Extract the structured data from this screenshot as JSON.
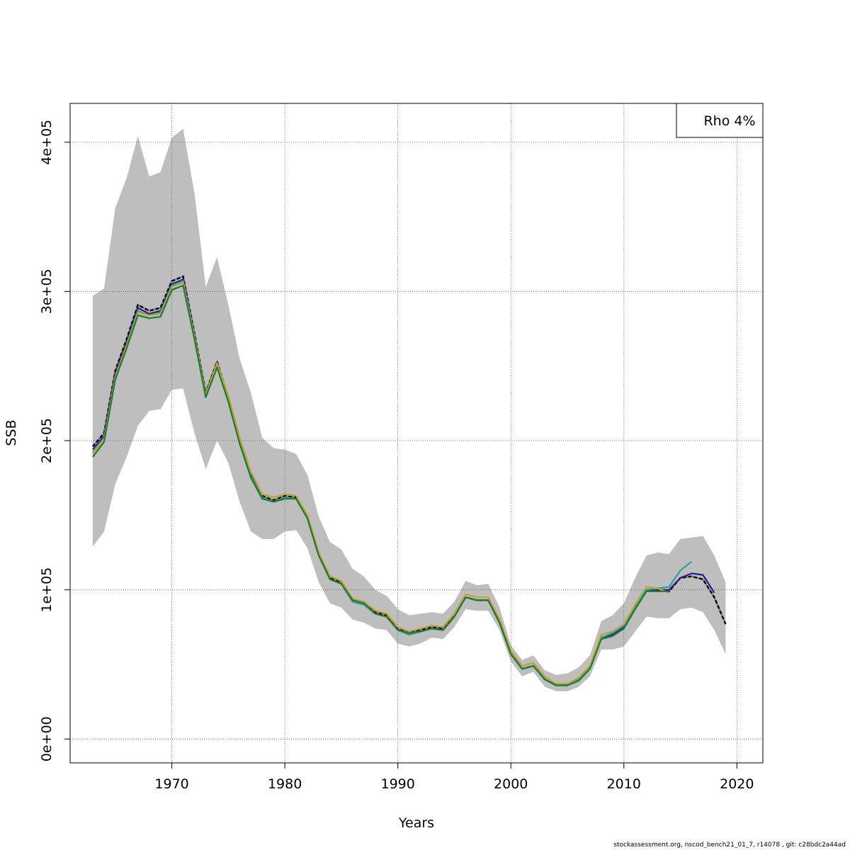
{
  "chart_data": {
    "type": "line",
    "xlabel": "Years",
    "ylabel": "SSB",
    "xlim": [
      1961,
      2022.3
    ],
    "ylim": [
      -16000,
      426000
    ],
    "x_ticks": [
      1970,
      1980,
      1990,
      2000,
      2010,
      2020
    ],
    "x_tick_labels": [
      "1970",
      "1980",
      "1990",
      "2000",
      "2010",
      "2020"
    ],
    "y_ticks": [
      0,
      100000,
      200000,
      300000,
      400000
    ],
    "y_tick_labels": [
      "0e+00",
      "1e+05",
      "2e+05",
      "3e+05",
      "4e+05"
    ],
    "grid": true,
    "legend": {
      "position": "top-right",
      "text": "Rho 4%"
    },
    "band": {
      "color": "#bebebe",
      "x": [
        1963,
        1964,
        1965,
        1966,
        1967,
        1968,
        1969,
        1970,
        1971,
        1972,
        1973,
        1974,
        1975,
        1976,
        1977,
        1978,
        1979,
        1980,
        1981,
        1982,
        1983,
        1984,
        1985,
        1986,
        1987,
        1988,
        1989,
        1990,
        1991,
        1992,
        1993,
        1994,
        1995,
        1996,
        1997,
        1998,
        1999,
        2000,
        2001,
        2002,
        2003,
        2004,
        2005,
        2006,
        2007,
        2008,
        2009,
        2010,
        2011,
        2012,
        2013,
        2014,
        2015,
        2016,
        2017,
        2018,
        2019
      ],
      "upper": [
        297000,
        302000,
        356000,
        376000,
        404000,
        377000,
        380000,
        403000,
        409000,
        366000,
        303000,
        323000,
        291000,
        255000,
        232000,
        202000,
        195000,
        194000,
        191000,
        177000,
        149000,
        132000,
        127000,
        114000,
        109000,
        100000,
        96000,
        87000,
        83000,
        84000,
        85000,
        84000,
        92000,
        106000,
        103000,
        104000,
        88000,
        63000,
        53000,
        56000,
        46000,
        43000,
        44000,
        48000,
        56000,
        79000,
        83000,
        91000,
        108000,
        123000,
        125000,
        124000,
        134000,
        135000,
        136000,
        123000,
        105000
      ],
      "lower": [
        129000,
        139000,
        171000,
        189000,
        210000,
        220000,
        221000,
        234000,
        235000,
        205000,
        181000,
        200000,
        185000,
        159000,
        139000,
        134000,
        134000,
        139000,
        140000,
        128000,
        105000,
        91000,
        88000,
        80000,
        78000,
        74000,
        73000,
        64000,
        62000,
        64000,
        68000,
        67000,
        75000,
        87000,
        86000,
        86000,
        73000,
        52000,
        42000,
        45000,
        35000,
        32000,
        32000,
        35000,
        42000,
        60000,
        60000,
        62000,
        72000,
        82000,
        81000,
        81000,
        87000,
        88000,
        85000,
        73000,
        57000
      ]
    },
    "series": [
      {
        "color": "#000000",
        "dashed": true,
        "x": [
          1963,
          1964,
          1965,
          1966,
          1967,
          1968,
          1969,
          1970,
          1971,
          1972,
          1973,
          1974,
          1975,
          1976,
          1977,
          1978,
          1979,
          1980,
          1981,
          1982,
          1983,
          1984,
          1985,
          1986,
          1987,
          1988,
          1989,
          1990,
          1991,
          1992,
          1993,
          1994,
          1995,
          1996,
          1997,
          1998,
          1999,
          2000,
          2001,
          2002,
          2003,
          2004,
          2005,
          2006,
          2007,
          2008,
          2009,
          2010,
          2011,
          2012,
          2013,
          2014,
          2015,
          2016,
          2017,
          2018,
          2019
        ],
        "values": [
          196000,
          205000,
          247000,
          268000,
          291000,
          287000,
          289000,
          307000,
          310000,
          272000,
          232000,
          253000,
          229000,
          200000,
          178000,
          163000,
          160000,
          163000,
          162000,
          149000,
          124000,
          108000,
          105000,
          93000,
          91000,
          85000,
          83000,
          74000,
          71000,
          73000,
          75000,
          74000,
          83000,
          95000,
          93000,
          93000,
          78000,
          57000,
          47000,
          49000,
          40000,
          36000,
          37000,
          40000,
          48000,
          68000,
          70000,
          75000,
          88000,
          100000,
          100000,
          99000,
          108000,
          109000,
          107000,
          95000,
          77000
        ]
      },
      {
        "color": "#2a1f8f",
        "dashed": false,
        "x": [
          1963,
          1964,
          1965,
          1966,
          1967,
          1968,
          1969,
          1970,
          1971,
          1972,
          1973,
          1974,
          1975,
          1976,
          1977,
          1978,
          1979,
          1980,
          1981,
          1982,
          1983,
          1984,
          1985,
          1986,
          1987,
          1988,
          1989,
          1990,
          1991,
          1992,
          1993,
          1994,
          1995,
          1996,
          1997,
          1998,
          1999,
          2000,
          2001,
          2002,
          2003,
          2004,
          2005,
          2006,
          2007,
          2008,
          2009,
          2010,
          2011,
          2012,
          2013,
          2014,
          2015,
          2016,
          2017,
          2018
        ],
        "values": [
          194000,
          203000,
          245000,
          266000,
          289000,
          285000,
          287000,
          305000,
          308000,
          270000,
          231000,
          252000,
          228000,
          199000,
          177000,
          162000,
          159000,
          162000,
          161000,
          148000,
          123000,
          107000,
          104000,
          92000,
          90000,
          84000,
          82000,
          73000,
          70000,
          72000,
          74000,
          73000,
          82000,
          95000,
          93000,
          93000,
          78000,
          57000,
          47000,
          49000,
          40000,
          36000,
          36000,
          40000,
          48000,
          68000,
          70000,
          75000,
          88000,
          100000,
          100000,
          100000,
          108000,
          111000,
          110000,
          98000
        ]
      },
      {
        "color": "#2aa1a1",
        "dashed": false,
        "x": [
          1963,
          1964,
          1965,
          1966,
          1967,
          1968,
          1969,
          1970,
          1971,
          1972,
          1973,
          1974,
          1975,
          1976,
          1977,
          1978,
          1979,
          1980,
          1981,
          1982,
          1983,
          1984,
          1985,
          1986,
          1987,
          1988,
          1989,
          1990,
          1991,
          1992,
          1993,
          1994,
          1995,
          1996,
          1997,
          1998,
          1999,
          2000,
          2001,
          2002,
          2003,
          2004,
          2005,
          2006,
          2007,
          2008,
          2009,
          2010,
          2011,
          2012,
          2013,
          2014,
          2015,
          2016
        ],
        "values": [
          192000,
          201000,
          243000,
          264000,
          287000,
          284000,
          286000,
          304000,
          307000,
          270000,
          230000,
          251000,
          227000,
          199000,
          176000,
          162000,
          159000,
          162000,
          161000,
          148000,
          123000,
          107000,
          104000,
          92000,
          90000,
          84000,
          82000,
          73000,
          70000,
          72000,
          74000,
          73000,
          82000,
          95000,
          93000,
          93000,
          78000,
          57000,
          47000,
          49000,
          40000,
          36000,
          36000,
          40000,
          48000,
          68000,
          71000,
          76000,
          89000,
          100000,
          101000,
          102000,
          113000,
          119000
        ]
      },
      {
        "color": "#c7a02c",
        "dashed": false,
        "x": [
          1963,
          1964,
          1965,
          1966,
          1967,
          1968,
          1969,
          1970,
          1971,
          1972,
          1973,
          1974,
          1975,
          1976,
          1977,
          1978,
          1979,
          1980,
          1981,
          1982,
          1983,
          1984,
          1985,
          1986,
          1987,
          1988,
          1989,
          1990,
          1991,
          1992,
          1993,
          1994,
          1995,
          1996,
          1997,
          1998,
          1999,
          2000,
          2001,
          2002,
          2003,
          2004,
          2005,
          2006,
          2007,
          2008,
          2009,
          2010,
          2011,
          2012,
          2013,
          2014
        ],
        "values": [
          191000,
          201000,
          243000,
          264000,
          286000,
          284000,
          285000,
          303000,
          306000,
          270000,
          231000,
          252000,
          230000,
          202000,
          179000,
          164000,
          162000,
          164000,
          163000,
          150000,
          125000,
          109000,
          106000,
          94000,
          92000,
          86000,
          84000,
          75000,
          72000,
          74000,
          76000,
          75000,
          84000,
          97000,
          95000,
          95000,
          80000,
          59000,
          49000,
          51000,
          42000,
          37000,
          37000,
          41000,
          49000,
          70000,
          72000,
          77000,
          90000,
          102000,
          101000,
          98000
        ]
      },
      {
        "color": "#1a7d33",
        "dashed": false,
        "x": [
          1963,
          1964,
          1965,
          1966,
          1967,
          1968,
          1969,
          1970,
          1971,
          1972,
          1973,
          1974,
          1975,
          1976,
          1977,
          1978,
          1979,
          1980,
          1981,
          1982,
          1983,
          1984,
          1985,
          1986,
          1987,
          1988,
          1989,
          1990,
          1991,
          1992,
          1993,
          1994,
          1995,
          1996,
          1997,
          1998,
          1999,
          2000,
          2001,
          2002,
          2003,
          2004,
          2005,
          2006,
          2007,
          2008,
          2009,
          2010,
          2011,
          2012,
          2013,
          2014
        ],
        "values": [
          189000,
          199000,
          241000,
          262000,
          284000,
          282000,
          283000,
          301000,
          304000,
          268000,
          229000,
          249000,
          226000,
          198000,
          175000,
          161000,
          159000,
          161000,
          161000,
          148000,
          123000,
          107000,
          104000,
          93000,
          91000,
          84000,
          82000,
          73000,
          71000,
          72000,
          74000,
          73000,
          82000,
          95000,
          93000,
          93000,
          78000,
          57000,
          47000,
          49000,
          40000,
          36000,
          36000,
          39000,
          47000,
          67000,
          69000,
          74000,
          87000,
          99000,
          99000,
          99000
        ]
      }
    ]
  },
  "footer": "stockassessment.org, nscod_bench21_01_7, r14078 , git: c28bdc2a44ad"
}
